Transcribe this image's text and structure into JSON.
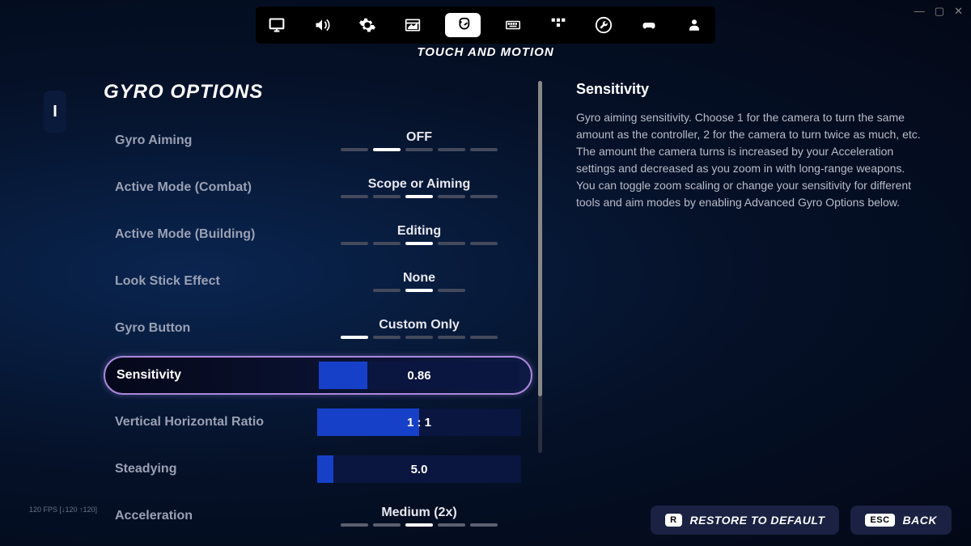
{
  "window": {
    "minimize": "—",
    "maximize": "▢",
    "close": "✕"
  },
  "toolbar": {
    "icons": [
      "monitor",
      "volume",
      "gear",
      "window",
      "touch",
      "keyboard",
      "grid",
      "wrench",
      "controller",
      "user"
    ],
    "active_index": 4
  },
  "subtitle": "TOUCH AND MOTION",
  "left_tab": "I",
  "section_title": "GYRO OPTIONS",
  "options": [
    {
      "label": "Gyro Aiming",
      "type": "segment",
      "value": "OFF",
      "ticks": 5,
      "active_tick": 1
    },
    {
      "label": "Active Mode (Combat)",
      "type": "segment",
      "value": "Scope or Aiming",
      "ticks": 5,
      "active_tick": 2
    },
    {
      "label": "Active Mode (Building)",
      "type": "segment",
      "value": "Editing",
      "ticks": 5,
      "active_tick": 2
    },
    {
      "label": "Look Stick Effect",
      "type": "segment",
      "value": "None",
      "ticks": 3,
      "active_tick": 1
    },
    {
      "label": "Gyro Button",
      "type": "segment",
      "value": "Custom Only",
      "ticks": 5,
      "active_tick": 0
    },
    {
      "label": "Sensitivity",
      "type": "slider",
      "value": "0.86",
      "fill_pct": 24,
      "selected": true
    },
    {
      "label": "Vertical Horizontal Ratio",
      "type": "slider",
      "value": "1 : 1",
      "fill_pct": 50
    },
    {
      "label": "Steadying",
      "type": "slider",
      "value": "5.0",
      "fill_pct": 8
    },
    {
      "label": "Acceleration",
      "type": "segment",
      "value": "Medium (2x)",
      "ticks": 5,
      "active_tick": 2,
      "light_ticks": true
    }
  ],
  "help": {
    "title": "Sensitivity",
    "text": "Gyro aiming sensitivity. Choose 1 for the camera to turn the same amount as the controller, 2 for the camera to turn twice as much, etc. The amount the camera turns is increased by your Acceleration settings and decreased as you zoom in with long-range weapons. You can toggle zoom scaling or change your sensitivity for different tools and aim modes by enabling Advanced Gyro Options below."
  },
  "fps": "120 FPS [↓120 ↑120]",
  "footer": {
    "restore": {
      "key": "R",
      "label": "RESTORE TO DEFAULT"
    },
    "back": {
      "key": "ESC",
      "label": "BACK"
    }
  },
  "colors": {
    "slider_fill": "#1740c8",
    "slider_track": "#0a1540",
    "selected_border": "#aa88dd"
  }
}
